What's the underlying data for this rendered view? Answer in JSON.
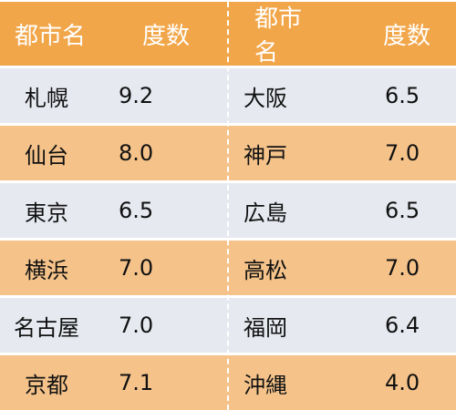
{
  "headers": {
    "city_left": "都市名",
    "degree_left": "度数",
    "city_right": "都市名",
    "degree_right": "度数"
  },
  "rows": [
    {
      "city_left": "札幌",
      "degree_left": "9.2",
      "city_right": "大阪",
      "degree_right": "6.5"
    },
    {
      "city_left": "仙台",
      "degree_left": "8.0",
      "city_right": "神戸",
      "degree_right": "7.0"
    },
    {
      "city_left": "東京",
      "degree_left": "6.5",
      "city_right": "広島",
      "degree_right": "6.5"
    },
    {
      "city_left": "横浜",
      "degree_left": "7.0",
      "city_right": "高松",
      "degree_right": "7.0"
    },
    {
      "city_left": "名古屋",
      "degree_left": "7.0",
      "city_right": "福岡",
      "degree_right": "6.4"
    },
    {
      "city_left": "京都",
      "degree_left": "7.1",
      "city_right": "沖縄",
      "degree_right": "4.0"
    }
  ],
  "colors": {
    "header_bg": "#f2a64a",
    "row_gray": "#e6e9f0",
    "row_orange": "#f5c38a"
  }
}
